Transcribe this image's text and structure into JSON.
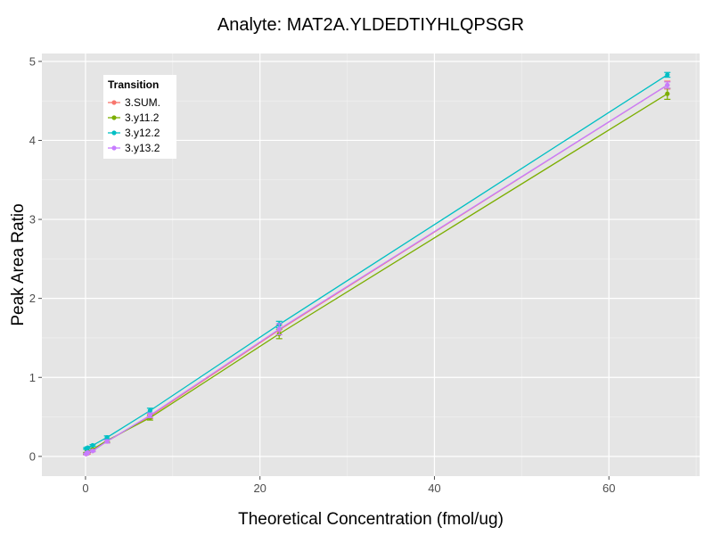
{
  "chart_data": {
    "type": "line",
    "title": "Analyte: MAT2A.YLDEDTIYHLQPSGR",
    "xlabel": "Theoretical Concentration (fmol/ug)",
    "ylabel": "Peak Area Ratio",
    "xlim": [
      -5,
      70.4
    ],
    "ylim": [
      -0.25,
      5.1
    ],
    "xticks": [
      0,
      20,
      40,
      60
    ],
    "yticks": [
      0,
      1,
      2,
      3,
      4,
      5
    ],
    "grid": true,
    "legend": {
      "title": "Transition",
      "position": "top-left"
    },
    "x": [
      0.08,
      0.25,
      0.82,
      2.47,
      7.4,
      22.2,
      66.7
    ],
    "series": [
      {
        "name": "3.SUM.",
        "color": "#F8766D",
        "values": [
          0.03,
          0.04,
          0.07,
          0.19,
          0.51,
          1.6,
          4.7
        ],
        "err": [
          0.01,
          0.01,
          0.01,
          0.02,
          0.03,
          0.06,
          0.05
        ]
      },
      {
        "name": "3.y11.2",
        "color": "#7CAE00",
        "values": [
          0.04,
          0.06,
          0.09,
          0.2,
          0.49,
          1.55,
          4.59
        ],
        "err": [
          0.01,
          0.01,
          0.01,
          0.02,
          0.03,
          0.06,
          0.07
        ]
      },
      {
        "name": "3.y12.2",
        "color": "#00BFC4",
        "values": [
          0.1,
          0.11,
          0.14,
          0.24,
          0.58,
          1.67,
          4.83
        ],
        "err": [
          0.01,
          0.01,
          0.01,
          0.02,
          0.03,
          0.04,
          0.03
        ]
      },
      {
        "name": "3.y13.2",
        "color": "#C77CFF",
        "values": [
          0.03,
          0.05,
          0.07,
          0.19,
          0.52,
          1.61,
          4.7
        ],
        "err": [
          0.01,
          0.01,
          0.01,
          0.02,
          0.03,
          0.07,
          0.04
        ]
      }
    ]
  }
}
